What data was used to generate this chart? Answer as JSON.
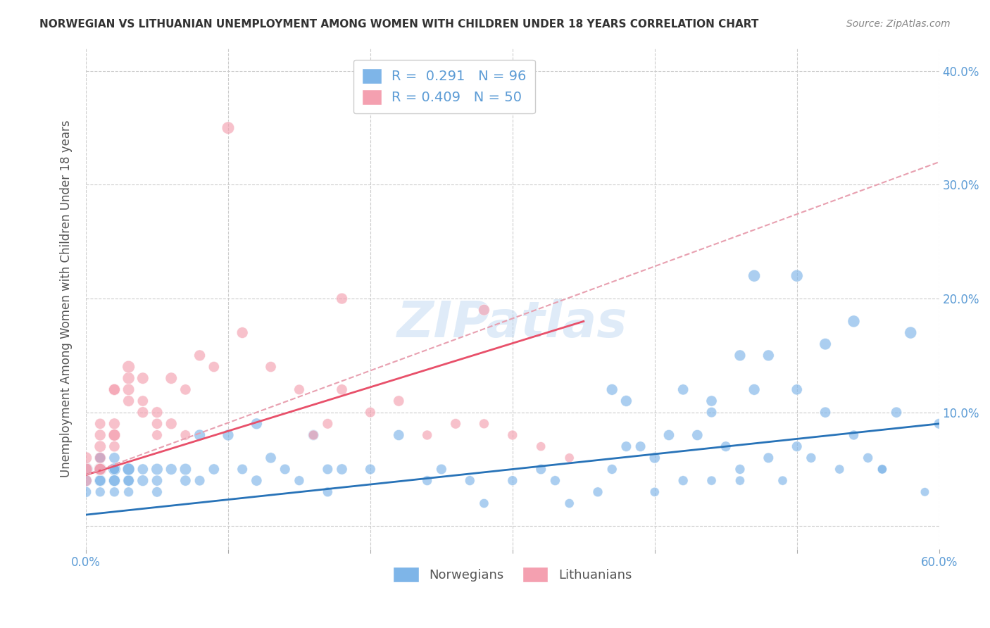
{
  "title": "NORWEGIAN VS LITHUANIAN UNEMPLOYMENT AMONG WOMEN WITH CHILDREN UNDER 18 YEARS CORRELATION CHART",
  "source": "Source: ZipAtlas.com",
  "ylabel": "Unemployment Among Women with Children Under 18 years",
  "xlabel": "",
  "xlim": [
    0.0,
    0.6
  ],
  "ylim": [
    -0.02,
    0.42
  ],
  "yticks": [
    0.0,
    0.1,
    0.2,
    0.3,
    0.4
  ],
  "ytick_labels": [
    "",
    "10.0%",
    "20.0%",
    "30.0%",
    "40.0%"
  ],
  "xticks": [
    0.0,
    0.1,
    0.2,
    0.3,
    0.4,
    0.5,
    0.6
  ],
  "xtick_labels": [
    "0.0%",
    "",
    "",
    "",
    "",
    "",
    "60.0%"
  ],
  "legend_entries": [
    {
      "label": "Norwegians",
      "color": "#7EB5E8",
      "R": 0.291,
      "N": 96
    },
    {
      "label": "Lithuanians",
      "color": "#F4A0B0",
      "R": 0.409,
      "N": 50
    }
  ],
  "watermark": "ZIPatlas",
  "title_color": "#333333",
  "axis_color": "#5b9bd5",
  "grid_color": "#cccccc",
  "background_color": "#ffffff",
  "norwegians_scatter": {
    "x": [
      0.0,
      0.0,
      0.0,
      0.01,
      0.01,
      0.01,
      0.01,
      0.01,
      0.01,
      0.01,
      0.01,
      0.01,
      0.02,
      0.02,
      0.02,
      0.02,
      0.02,
      0.02,
      0.02,
      0.03,
      0.03,
      0.03,
      0.03,
      0.03,
      0.04,
      0.04,
      0.05,
      0.05,
      0.05,
      0.06,
      0.07,
      0.07,
      0.08,
      0.08,
      0.09,
      0.1,
      0.11,
      0.12,
      0.12,
      0.13,
      0.14,
      0.15,
      0.16,
      0.17,
      0.17,
      0.18,
      0.2,
      0.22,
      0.24,
      0.25,
      0.27,
      0.28,
      0.3,
      0.32,
      0.33,
      0.34,
      0.36,
      0.37,
      0.37,
      0.38,
      0.39,
      0.4,
      0.4,
      0.41,
      0.42,
      0.43,
      0.44,
      0.45,
      0.46,
      0.46,
      0.47,
      0.48,
      0.49,
      0.5,
      0.51,
      0.52,
      0.53,
      0.54,
      0.55,
      0.56,
      0.57,
      0.58,
      0.59,
      0.6,
      0.38,
      0.44,
      0.47,
      0.5,
      0.52,
      0.56,
      0.42,
      0.44,
      0.46,
      0.48,
      0.5,
      0.54
    ],
    "y": [
      0.05,
      0.04,
      0.03,
      0.05,
      0.05,
      0.04,
      0.06,
      0.05,
      0.04,
      0.03,
      0.06,
      0.05,
      0.05,
      0.04,
      0.05,
      0.04,
      0.06,
      0.05,
      0.03,
      0.05,
      0.04,
      0.04,
      0.05,
      0.03,
      0.04,
      0.05,
      0.05,
      0.04,
      0.03,
      0.05,
      0.04,
      0.05,
      0.04,
      0.08,
      0.05,
      0.08,
      0.05,
      0.04,
      0.09,
      0.06,
      0.05,
      0.04,
      0.08,
      0.05,
      0.03,
      0.05,
      0.05,
      0.08,
      0.04,
      0.05,
      0.04,
      0.02,
      0.04,
      0.05,
      0.04,
      0.02,
      0.03,
      0.12,
      0.05,
      0.11,
      0.07,
      0.06,
      0.03,
      0.08,
      0.04,
      0.08,
      0.04,
      0.07,
      0.05,
      0.04,
      0.12,
      0.06,
      0.04,
      0.07,
      0.06,
      0.1,
      0.05,
      0.18,
      0.06,
      0.05,
      0.1,
      0.17,
      0.03,
      0.09,
      0.07,
      0.11,
      0.22,
      0.12,
      0.16,
      0.05,
      0.12,
      0.1,
      0.15,
      0.15,
      0.22,
      0.08
    ],
    "sizes": [
      200,
      150,
      120,
      180,
      160,
      140,
      130,
      150,
      120,
      100,
      110,
      130,
      160,
      140,
      150,
      130,
      120,
      110,
      100,
      140,
      130,
      120,
      150,
      100,
      130,
      120,
      140,
      120,
      110,
      130,
      120,
      140,
      110,
      130,
      120,
      130,
      110,
      120,
      130,
      120,
      110,
      100,
      120,
      110,
      100,
      120,
      110,
      120,
      100,
      110,
      100,
      90,
      100,
      110,
      100,
      90,
      100,
      130,
      100,
      130,
      110,
      120,
      90,
      120,
      100,
      120,
      90,
      110,
      100,
      90,
      130,
      110,
      90,
      110,
      100,
      120,
      90,
      150,
      100,
      90,
      120,
      150,
      80,
      110,
      110,
      120,
      150,
      120,
      140,
      90,
      120,
      110,
      130,
      130,
      150,
      100
    ]
  },
  "lithuanians_scatter": {
    "x": [
      0.0,
      0.0,
      0.0,
      0.0,
      0.01,
      0.01,
      0.01,
      0.01,
      0.01,
      0.01,
      0.01,
      0.02,
      0.02,
      0.02,
      0.02,
      0.02,
      0.02,
      0.03,
      0.03,
      0.03,
      0.03,
      0.04,
      0.04,
      0.04,
      0.05,
      0.05,
      0.05,
      0.06,
      0.06,
      0.07,
      0.07,
      0.08,
      0.09,
      0.1,
      0.11,
      0.13,
      0.15,
      0.16,
      0.17,
      0.18,
      0.2,
      0.22,
      0.24,
      0.26,
      0.28,
      0.3,
      0.32,
      0.34,
      0.18,
      0.28
    ],
    "y": [
      0.05,
      0.05,
      0.06,
      0.04,
      0.05,
      0.07,
      0.06,
      0.05,
      0.05,
      0.08,
      0.09,
      0.08,
      0.08,
      0.09,
      0.07,
      0.12,
      0.12,
      0.13,
      0.12,
      0.11,
      0.14,
      0.1,
      0.11,
      0.13,
      0.09,
      0.1,
      0.08,
      0.09,
      0.13,
      0.12,
      0.08,
      0.15,
      0.14,
      0.35,
      0.17,
      0.14,
      0.12,
      0.08,
      0.09,
      0.12,
      0.1,
      0.11,
      0.08,
      0.09,
      0.09,
      0.08,
      0.07,
      0.06,
      0.2,
      0.19
    ],
    "sizes": [
      180,
      160,
      150,
      140,
      160,
      140,
      130,
      150,
      140,
      130,
      120,
      150,
      140,
      130,
      120,
      140,
      130,
      150,
      140,
      130,
      160,
      130,
      120,
      140,
      120,
      130,
      110,
      130,
      140,
      120,
      110,
      130,
      120,
      160,
      130,
      120,
      110,
      100,
      110,
      120,
      110,
      120,
      100,
      110,
      100,
      100,
      90,
      90,
      130,
      130
    ]
  },
  "norwegian_trendline": {
    "x": [
      0.0,
      0.6
    ],
    "y": [
      0.01,
      0.09
    ],
    "color": "#2873B8",
    "linewidth": 2.0
  },
  "lithuanian_trendline": {
    "x": [
      0.0,
      0.35
    ],
    "y": [
      0.045,
      0.18
    ],
    "color": "#E8506A",
    "linewidth": 2.0
  },
  "lithuanian_extrapolated": {
    "x": [
      0.0,
      0.6
    ],
    "y": [
      0.045,
      0.32
    ],
    "color": "#E8A0B0",
    "linewidth": 1.5,
    "linestyle": "--"
  }
}
